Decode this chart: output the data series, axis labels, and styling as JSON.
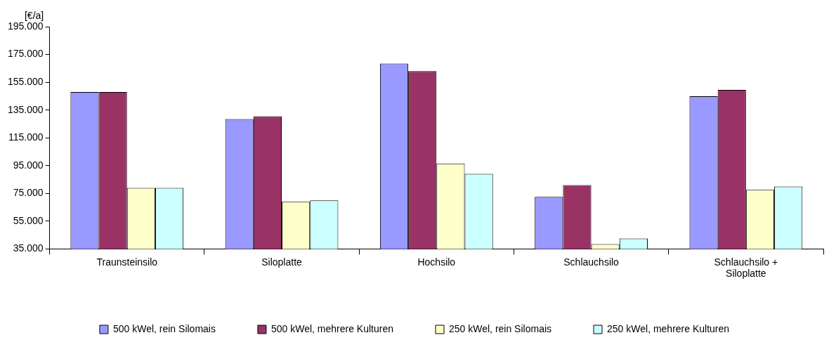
{
  "chart_data": {
    "type": "bar",
    "ylabel": "[€/a]",
    "categories": [
      "Traunsteinsilo",
      "Siloplatte",
      "Hochsilo",
      "Schlauchsilo",
      "Schlauchsilo + Siloplatte"
    ],
    "series": [
      {
        "name": "500 kWel, rein Silomais",
        "color": "#9999ff",
        "values": [
          148000,
          128500,
          168500,
          72500,
          145000
        ]
      },
      {
        "name": "500 kWel, mehrere Kulturen",
        "color": "#993366",
        "values": [
          148000,
          130500,
          163000,
          81000,
          149500
        ]
      },
      {
        "name": "250 kWel, rein Silomais",
        "color": "#ffffcc",
        "values": [
          79000,
          69000,
          96500,
          38500,
          77500
        ]
      },
      {
        "name": "250 kWel, mehrere Kulturen",
        "color": "#ccffff",
        "values": [
          79000,
          70000,
          89000,
          42500,
          80000
        ]
      }
    ],
    "ylim": [
      35000,
      195000
    ],
    "yticks": [
      {
        "value": 35000,
        "label": "35.000"
      },
      {
        "value": 55000,
        "label": "55.000"
      },
      {
        "value": 75000,
        "label": "75.000"
      },
      {
        "value": 95000,
        "label": "95.000"
      },
      {
        "value": 115000,
        "label": "115.000"
      },
      {
        "value": 135000,
        "label": "135.000"
      },
      {
        "value": 155000,
        "label": "155.000"
      },
      {
        "value": 175000,
        "label": "175.000"
      },
      {
        "value": 195000,
        "label": "195.000"
      }
    ],
    "grid": false,
    "legend": "bottom"
  }
}
